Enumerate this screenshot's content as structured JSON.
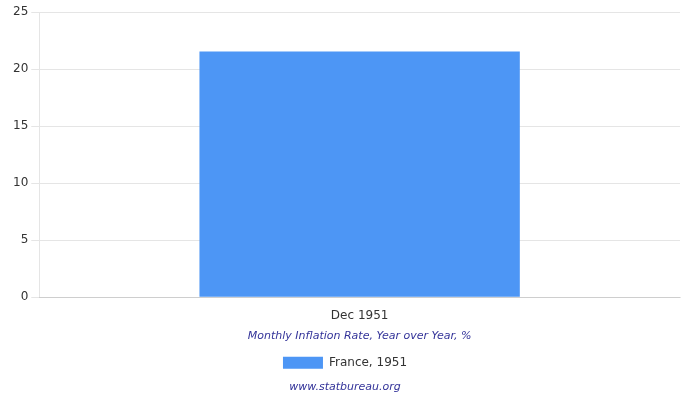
{
  "chart_data": {
    "type": "bar",
    "categories": [
      "Dec 1951"
    ],
    "series": [
      {
        "name": "France, 1951",
        "color": "#4d96f5",
        "values": [
          21.53
        ]
      }
    ],
    "xlabel": "Monthly Inflation Rate, Year over Year, %",
    "annotations": [
      "www.statbureau.org"
    ],
    "ylim": [
      0,
      25
    ],
    "yticks": [
      0,
      5,
      10,
      15,
      20,
      25
    ],
    "grid": "y",
    "legend": "bottom"
  }
}
